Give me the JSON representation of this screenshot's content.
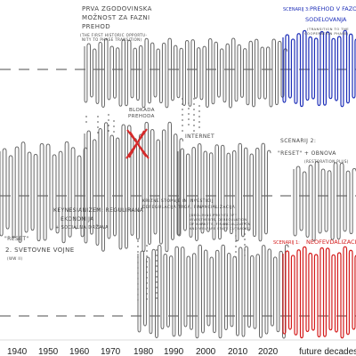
{
  "axis": {
    "ticks": [
      "1940",
      "1950",
      "1960",
      "1970",
      "1980",
      "1990",
      "2000",
      "2010",
      "2020"
    ],
    "future_label": "future decades"
  },
  "annotations": {
    "top": {
      "title_line1": "PRVA ZGODOVINSKA",
      "title_line2": "MOŽNOST ZA FAZNI",
      "title_line3": "PREHOD",
      "note_line1": "(THE FIRST HISTORIC OPPORTU-",
      "note_line2": "NITY TO PHASE TRANSITION)"
    },
    "blocked": {
      "line1": "BLOKADA",
      "line2": "PREHODA"
    },
    "internet": "INTERNET",
    "keynes": {
      "line1": "KEYNESIANIZEM: REGULIRANA",
      "line2": "EKONOMIJA",
      "line3": "+ SOCIALNA DRŽAVA"
    },
    "crisis": {
      "line1": "KRIZNE STOPNJE IN INVESTICIJ",
      "line2": "DEREGULACIJA TRGA, FINANCIALIZACIJA",
      "note_line1": "(DECLINING PROFITS OF",
      "note_line2": "INVESTMENTS, DEREGULATION",
      "note_line3": "OF MARKETS, FINANCIALIZATION",
      "note_line4": "AND WELFARE STATE CUTBACKS)"
    },
    "reset": {
      "line1": "\"RESET\"",
      "line2": "2. SVETOVNE VOJNE",
      "line3": "(WW II)"
    }
  },
  "scenarios": {
    "s3": {
      "label": "SCENARIJ 3:",
      "title_line1": "PREHOD V FAZO",
      "title_line2": "SODELOVANJA",
      "note_line1": "(TRANSITION TO THE",
      "note_line2": "COOPERATION PHASE)",
      "color": "#1e2fb8"
    },
    "s2": {
      "label": "SCENARIJ 2:",
      "title": "\"RESET\" + OBNOVA",
      "note": "(RESTORATION PLUS)"
    },
    "s1": {
      "label": "SCENARIJ 1:",
      "title": "NEOFEVDALIZACIJA",
      "color": "#d41b1b"
    }
  },
  "colors": {
    "blue": "#1e2fb8",
    "red": "#d41b1b",
    "ink": "#555555",
    "blocked_mark": "#d42a2a"
  }
}
